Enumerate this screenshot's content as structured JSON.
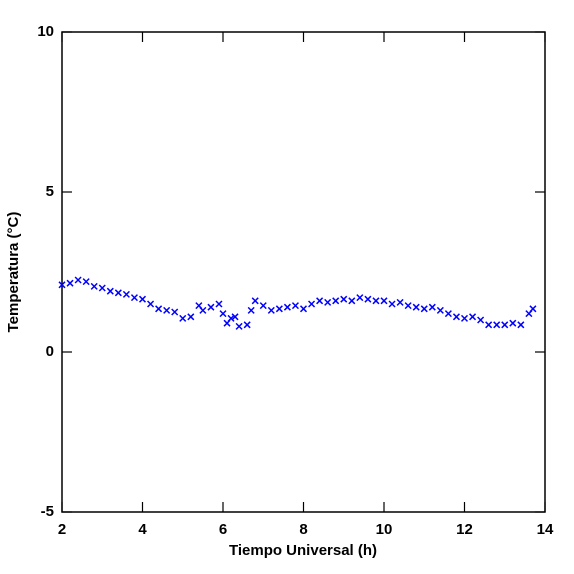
{
  "chart_data": {
    "type": "scatter",
    "x_label": "Tiempo Universal (h)",
    "y_label": "Temperatura (°C)",
    "xlim": [
      2,
      14
    ],
    "ylim": [
      -5,
      10
    ],
    "xticks": [
      2,
      4,
      6,
      8,
      10,
      12,
      14
    ],
    "yticks": [
      -5,
      0,
      5,
      10
    ],
    "grid": false,
    "marker": "x",
    "series": [
      {
        "color": "#0000ff",
        "x": [
          2.0,
          2.2,
          2.4,
          2.6,
          2.8,
          3.0,
          3.2,
          3.4,
          3.6,
          3.8,
          4.0,
          4.2,
          4.4,
          4.6,
          4.8,
          5.0,
          5.2,
          5.4,
          5.5,
          5.7,
          5.9,
          6.0,
          6.1,
          6.2,
          6.3,
          6.4,
          6.6,
          6.7,
          6.8,
          7.0,
          7.2,
          7.4,
          7.6,
          7.8,
          8.0,
          8.2,
          8.4,
          8.6,
          8.8,
          9.0,
          9.2,
          9.4,
          9.6,
          9.8,
          10.0,
          10.2,
          10.4,
          10.6,
          10.8,
          11.0,
          11.2,
          11.4,
          11.6,
          11.8,
          12.0,
          12.2,
          12.4,
          12.6,
          12.8,
          13.0,
          13.2,
          13.4,
          13.6,
          13.7
        ],
        "values": [
          2.1,
          2.15,
          2.25,
          2.2,
          2.05,
          2.0,
          1.9,
          1.85,
          1.8,
          1.7,
          1.65,
          1.5,
          1.35,
          1.3,
          1.25,
          1.05,
          1.1,
          1.45,
          1.3,
          1.4,
          1.5,
          1.2,
          0.9,
          1.05,
          1.1,
          0.8,
          0.85,
          1.3,
          1.6,
          1.45,
          1.3,
          1.35,
          1.4,
          1.45,
          1.35,
          1.5,
          1.6,
          1.55,
          1.6,
          1.65,
          1.6,
          1.7,
          1.65,
          1.6,
          1.6,
          1.5,
          1.55,
          1.45,
          1.4,
          1.35,
          1.4,
          1.3,
          1.2,
          1.1,
          1.05,
          1.1,
          1.0,
          0.85,
          0.85,
          0.85,
          0.9,
          0.85,
          1.2,
          1.35
        ]
      }
    ]
  }
}
